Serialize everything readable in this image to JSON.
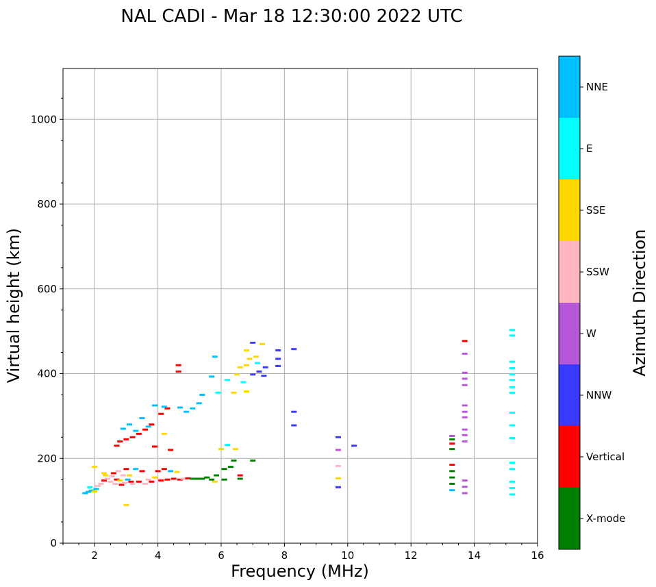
{
  "chart_data": {
    "type": "scatter",
    "title": "NAL CADI - Mar 18 12:30:00 2022 UTC",
    "xlabel": "Frequency (MHz)",
    "ylabel": "Virtual height (km)",
    "xlim": [
      1,
      16
    ],
    "ylim": [
      0,
      1120
    ],
    "xticks": [
      "2",
      "4",
      "6",
      "8",
      "10",
      "12",
      "14",
      "16"
    ],
    "yticks": [
      "0",
      "200",
      "400",
      "600",
      "800",
      "1000"
    ],
    "grid": true,
    "colorbar": {
      "label": "Azimuth Direction",
      "categories": [
        {
          "name": "X-mode",
          "color": "#008000"
        },
        {
          "name": "Vertical",
          "color": "#ff0000"
        },
        {
          "name": "NNW",
          "color": "#3a3aff"
        },
        {
          "name": "W",
          "color": "#b557d6"
        },
        {
          "name": "SSW",
          "color": "#ffb6c1"
        },
        {
          "name": "SSE",
          "color": "#ffd700"
        },
        {
          "name": "E",
          "color": "#00ffff"
        },
        {
          "name": "NNE",
          "color": "#00bfff"
        }
      ]
    },
    "points": [
      {
        "f": 1.7,
        "h": 118,
        "c": "NNE"
      },
      {
        "f": 1.8,
        "h": 121,
        "c": "NNE"
      },
      {
        "f": 1.9,
        "h": 124,
        "c": "NNE"
      },
      {
        "f": 2.0,
        "h": 122,
        "c": "SSE"
      },
      {
        "f": 2.05,
        "h": 128,
        "c": "NNE"
      },
      {
        "f": 1.85,
        "h": 132,
        "c": "E"
      },
      {
        "f": 2.1,
        "h": 135,
        "c": "SSW"
      },
      {
        "f": 2.2,
        "h": 140,
        "c": "SSW"
      },
      {
        "f": 2.3,
        "h": 148,
        "c": "Vertical"
      },
      {
        "f": 2.4,
        "h": 152,
        "c": "SSW"
      },
      {
        "f": 2.35,
        "h": 160,
        "c": "SSE"
      },
      {
        "f": 2.5,
        "h": 145,
        "c": "SSW"
      },
      {
        "f": 2.55,
        "h": 158,
        "c": "SSW"
      },
      {
        "f": 2.6,
        "h": 165,
        "c": "Vertical"
      },
      {
        "f": 2.65,
        "h": 140,
        "c": "SSW"
      },
      {
        "f": 2.7,
        "h": 150,
        "c": "Vertical"
      },
      {
        "f": 2.75,
        "h": 170,
        "c": "SSW"
      },
      {
        "f": 2.8,
        "h": 148,
        "c": "SSE"
      },
      {
        "f": 2.85,
        "h": 138,
        "c": "Vertical"
      },
      {
        "f": 2.9,
        "h": 160,
        "c": "SSW"
      },
      {
        "f": 2.95,
        "h": 142,
        "c": "SSW"
      },
      {
        "f": 3.0,
        "h": 175,
        "c": "Vertical"
      },
      {
        "f": 3.05,
        "h": 150,
        "c": "NNE"
      },
      {
        "f": 3.1,
        "h": 160,
        "c": "SSE"
      },
      {
        "f": 3.15,
        "h": 145,
        "c": "Vertical"
      },
      {
        "f": 3.2,
        "h": 140,
        "c": "SSW"
      },
      {
        "f": 3.3,
        "h": 175,
        "c": "NNE"
      },
      {
        "f": 3.4,
        "h": 145,
        "c": "Vertical"
      },
      {
        "f": 3.5,
        "h": 170,
        "c": "Vertical"
      },
      {
        "f": 3.6,
        "h": 140,
        "c": "SSW"
      },
      {
        "f": 3.7,
        "h": 150,
        "c": "SSW"
      },
      {
        "f": 3.8,
        "h": 145,
        "c": "Vertical"
      },
      {
        "f": 3.9,
        "h": 155,
        "c": "SSE"
      },
      {
        "f": 4.0,
        "h": 170,
        "c": "Vertical"
      },
      {
        "f": 4.1,
        "h": 148,
        "c": "Vertical"
      },
      {
        "f": 4.2,
        "h": 175,
        "c": "Vertical"
      },
      {
        "f": 4.3,
        "h": 150,
        "c": "Vertical"
      },
      {
        "f": 4.4,
        "h": 170,
        "c": "NNE"
      },
      {
        "f": 4.5,
        "h": 152,
        "c": "Vertical"
      },
      {
        "f": 4.6,
        "h": 168,
        "c": "SSE"
      },
      {
        "f": 4.7,
        "h": 150,
        "c": "Vertical"
      },
      {
        "f": 4.8,
        "h": 152,
        "c": "SSW"
      },
      {
        "f": 4.95,
        "h": 153,
        "c": "Vertical"
      },
      {
        "f": 5.1,
        "h": 152,
        "c": "X-mode"
      },
      {
        "f": 5.25,
        "h": 152,
        "c": "X-mode"
      },
      {
        "f": 5.4,
        "h": 152,
        "c": "X-mode"
      },
      {
        "f": 5.55,
        "h": 155,
        "c": "X-mode"
      },
      {
        "f": 5.7,
        "h": 150,
        "c": "X-mode"
      },
      {
        "f": 5.85,
        "h": 160,
        "c": "X-mode"
      },
      {
        "f": 5.8,
        "h": 145,
        "c": "SSE"
      },
      {
        "f": 6.1,
        "h": 150,
        "c": "X-mode"
      },
      {
        "f": 6.1,
        "h": 175,
        "c": "X-mode"
      },
      {
        "f": 6.3,
        "h": 180,
        "c": "X-mode"
      },
      {
        "f": 6.4,
        "h": 195,
        "c": "X-mode"
      },
      {
        "f": 6.6,
        "h": 160,
        "c": "Vertical"
      },
      {
        "f": 6.6,
        "h": 152,
        "c": "X-mode"
      },
      {
        "f": 7.0,
        "h": 195,
        "c": "X-mode"
      },
      {
        "f": 2.0,
        "h": 180,
        "c": "SSE"
      },
      {
        "f": 2.3,
        "h": 165,
        "c": "SSE"
      },
      {
        "f": 3.0,
        "h": 90,
        "c": "SSE"
      },
      {
        "f": 2.7,
        "h": 230,
        "c": "Vertical"
      },
      {
        "f": 2.8,
        "h": 240,
        "c": "Vertical"
      },
      {
        "f": 3.0,
        "h": 245,
        "c": "Vertical"
      },
      {
        "f": 3.2,
        "h": 250,
        "c": "Vertical"
      },
      {
        "f": 3.4,
        "h": 258,
        "c": "Vertical"
      },
      {
        "f": 3.6,
        "h": 268,
        "c": "Vertical"
      },
      {
        "f": 3.8,
        "h": 280,
        "c": "Vertical"
      },
      {
        "f": 3.9,
        "h": 228,
        "c": "Vertical"
      },
      {
        "f": 4.1,
        "h": 305,
        "c": "Vertical"
      },
      {
        "f": 4.3,
        "h": 318,
        "c": "Vertical"
      },
      {
        "f": 4.4,
        "h": 220,
        "c": "Vertical"
      },
      {
        "f": 4.65,
        "h": 405,
        "c": "Vertical"
      },
      {
        "f": 4.65,
        "h": 420,
        "c": "Vertical"
      },
      {
        "f": 2.9,
        "h": 270,
        "c": "NNE"
      },
      {
        "f": 3.1,
        "h": 280,
        "c": "NNE"
      },
      {
        "f": 3.3,
        "h": 265,
        "c": "NNE"
      },
      {
        "f": 3.5,
        "h": 295,
        "c": "NNE"
      },
      {
        "f": 3.7,
        "h": 275,
        "c": "NNE"
      },
      {
        "f": 3.9,
        "h": 325,
        "c": "NNE"
      },
      {
        "f": 4.2,
        "h": 322,
        "c": "NNE"
      },
      {
        "f": 4.2,
        "h": 258,
        "c": "SSE"
      },
      {
        "f": 4.7,
        "h": 320,
        "c": "NNE"
      },
      {
        "f": 4.9,
        "h": 310,
        "c": "NNE"
      },
      {
        "f": 5.1,
        "h": 318,
        "c": "NNE"
      },
      {
        "f": 5.3,
        "h": 330,
        "c": "NNE"
      },
      {
        "f": 5.4,
        "h": 350,
        "c": "NNE"
      },
      {
        "f": 5.8,
        "h": 440,
        "c": "NNE"
      },
      {
        "f": 5.7,
        "h": 393,
        "c": "NNE"
      },
      {
        "f": 5.9,
        "h": 355,
        "c": "E"
      },
      {
        "f": 6.0,
        "h": 222,
        "c": "SSE"
      },
      {
        "f": 6.2,
        "h": 232,
        "c": "E"
      },
      {
        "f": 6.45,
        "h": 222,
        "c": "SSE"
      },
      {
        "f": 6.2,
        "h": 385,
        "c": "E"
      },
      {
        "f": 6.4,
        "h": 355,
        "c": "SSE"
      },
      {
        "f": 6.5,
        "h": 398,
        "c": "SSE"
      },
      {
        "f": 6.6,
        "h": 415,
        "c": "SSE"
      },
      {
        "f": 6.7,
        "h": 380,
        "c": "E"
      },
      {
        "f": 6.8,
        "h": 358,
        "c": "SSE"
      },
      {
        "f": 6.8,
        "h": 420,
        "c": "SSE"
      },
      {
        "f": 6.9,
        "h": 435,
        "c": "SSE"
      },
      {
        "f": 7.0,
        "h": 398,
        "c": "NNW"
      },
      {
        "f": 7.1,
        "h": 440,
        "c": "SSE"
      },
      {
        "f": 7.15,
        "h": 425,
        "c": "E"
      },
      {
        "f": 7.2,
        "h": 405,
        "c": "NNW"
      },
      {
        "f": 7.3,
        "h": 470,
        "c": "SSE"
      },
      {
        "f": 7.35,
        "h": 395,
        "c": "NNW"
      },
      {
        "f": 7.4,
        "h": 415,
        "c": "NNW"
      },
      {
        "f": 7.0,
        "h": 473,
        "c": "NNW"
      },
      {
        "f": 6.8,
        "h": 455,
        "c": "SSE"
      },
      {
        "f": 7.8,
        "h": 455,
        "c": "NNW"
      },
      {
        "f": 7.8,
        "h": 435,
        "c": "NNW"
      },
      {
        "f": 7.8,
        "h": 418,
        "c": "NNW"
      },
      {
        "f": 8.3,
        "h": 458,
        "c": "NNW"
      },
      {
        "f": 8.3,
        "h": 310,
        "c": "NNW"
      },
      {
        "f": 8.3,
        "h": 278,
        "c": "NNW"
      },
      {
        "f": 9.7,
        "h": 250,
        "c": "NNW"
      },
      {
        "f": 10.2,
        "h": 230,
        "c": "NNW"
      },
      {
        "f": 9.7,
        "h": 220,
        "c": "W"
      },
      {
        "f": 9.7,
        "h": 182,
        "c": "SSW"
      },
      {
        "f": 9.7,
        "h": 153,
        "c": "SSE"
      },
      {
        "f": 9.7,
        "h": 132,
        "c": "NNW"
      },
      {
        "f": 13.3,
        "h": 125,
        "c": "NNE"
      },
      {
        "f": 13.3,
        "h": 140,
        "c": "X-mode"
      },
      {
        "f": 13.3,
        "h": 155,
        "c": "X-mode"
      },
      {
        "f": 13.3,
        "h": 170,
        "c": "X-mode"
      },
      {
        "f": 13.3,
        "h": 185,
        "c": "Vertical"
      },
      {
        "f": 13.3,
        "h": 222,
        "c": "X-mode"
      },
      {
        "f": 13.3,
        "h": 235,
        "c": "Vertical"
      },
      {
        "f": 13.3,
        "h": 245,
        "c": "X-mode"
      },
      {
        "f": 13.3,
        "h": 253,
        "c": "W"
      },
      {
        "f": 13.7,
        "h": 118,
        "c": "W"
      },
      {
        "f": 13.7,
        "h": 133,
        "c": "W"
      },
      {
        "f": 13.7,
        "h": 148,
        "c": "W"
      },
      {
        "f": 13.7,
        "h": 240,
        "c": "W"
      },
      {
        "f": 13.7,
        "h": 255,
        "c": "W"
      },
      {
        "f": 13.7,
        "h": 268,
        "c": "W"
      },
      {
        "f": 13.7,
        "h": 297,
        "c": "W"
      },
      {
        "f": 13.7,
        "h": 310,
        "c": "W"
      },
      {
        "f": 13.7,
        "h": 325,
        "c": "W"
      },
      {
        "f": 13.7,
        "h": 373,
        "c": "W"
      },
      {
        "f": 13.7,
        "h": 388,
        "c": "W"
      },
      {
        "f": 13.7,
        "h": 402,
        "c": "W"
      },
      {
        "f": 13.7,
        "h": 447,
        "c": "W"
      },
      {
        "f": 13.7,
        "h": 477,
        "c": "Vertical"
      },
      {
        "f": 15.2,
        "h": 115,
        "c": "E"
      },
      {
        "f": 15.2,
        "h": 130,
        "c": "E"
      },
      {
        "f": 15.2,
        "h": 145,
        "c": "E"
      },
      {
        "f": 15.2,
        "h": 175,
        "c": "E"
      },
      {
        "f": 15.2,
        "h": 190,
        "c": "E"
      },
      {
        "f": 15.2,
        "h": 248,
        "c": "E"
      },
      {
        "f": 15.2,
        "h": 278,
        "c": "E"
      },
      {
        "f": 15.2,
        "h": 308,
        "c": "E"
      },
      {
        "f": 15.2,
        "h": 355,
        "c": "E"
      },
      {
        "f": 15.2,
        "h": 368,
        "c": "E"
      },
      {
        "f": 15.2,
        "h": 385,
        "c": "E"
      },
      {
        "f": 15.2,
        "h": 398,
        "c": "E"
      },
      {
        "f": 15.2,
        "h": 413,
        "c": "E"
      },
      {
        "f": 15.2,
        "h": 428,
        "c": "E"
      },
      {
        "f": 15.2,
        "h": 490,
        "c": "E"
      },
      {
        "f": 15.2,
        "h": 503,
        "c": "E"
      }
    ]
  }
}
